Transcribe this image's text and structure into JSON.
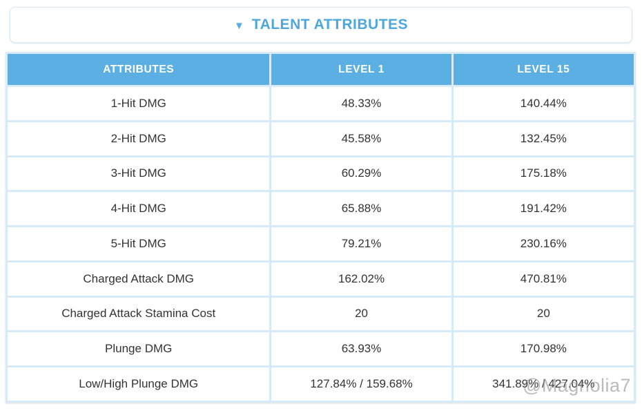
{
  "panel": {
    "title": "TALENT ATTRIBUTES",
    "collapse_icon": "▼"
  },
  "table": {
    "headers": [
      "ATTRIBUTES",
      "LEVEL 1",
      "LEVEL 15"
    ],
    "rows": [
      [
        "1-Hit DMG",
        "48.33%",
        "140.44%"
      ],
      [
        "2-Hit DMG",
        "45.58%",
        "132.45%"
      ],
      [
        "3-Hit DMG",
        "60.29%",
        "175.18%"
      ],
      [
        "4-Hit DMG",
        "65.88%",
        "191.42%"
      ],
      [
        "5-Hit DMG",
        "79.21%",
        "230.16%"
      ],
      [
        "Charged Attack DMG",
        "162.02%",
        "470.81%"
      ],
      [
        "Charged Attack Stamina Cost",
        "20",
        "20"
      ],
      [
        "Plunge DMG",
        "63.93%",
        "170.98%"
      ],
      [
        "Low/High Plunge DMG",
        "127.84% / 159.68%",
        "341.89% / 427.04%"
      ]
    ]
  },
  "watermark": "@Magnolia7",
  "colors": {
    "accent_blue": "#5bafe2",
    "title_blue": "#4da7dc",
    "border_light_blue": "#d7eaf7",
    "body_text": "#333333",
    "watermark_gray": "#8f8f8f"
  }
}
